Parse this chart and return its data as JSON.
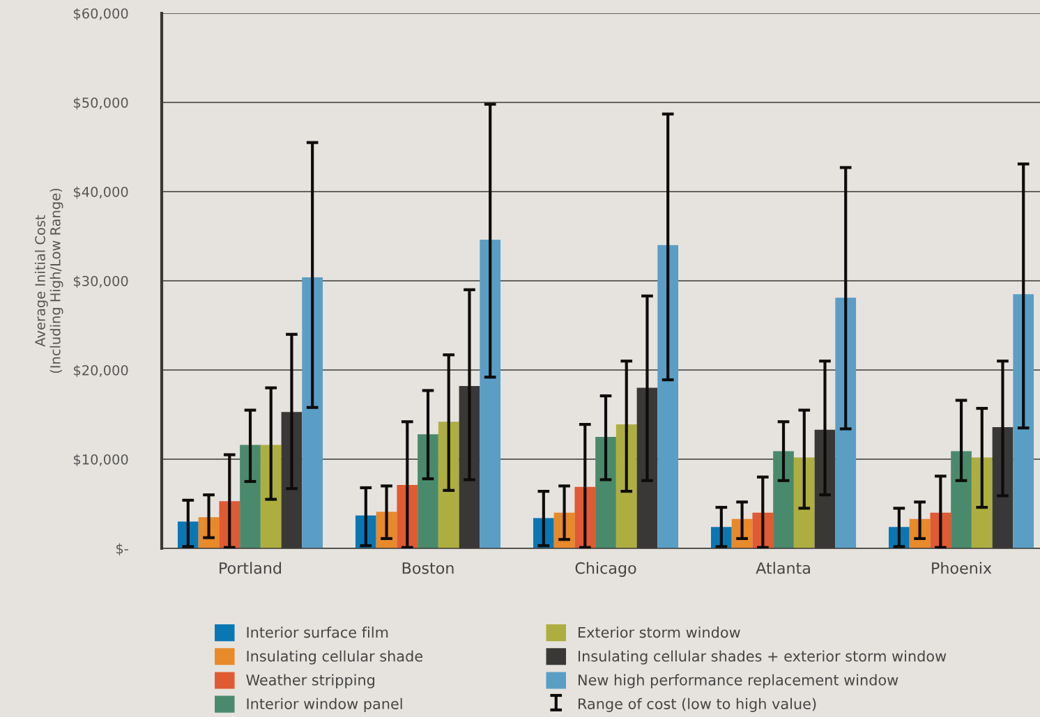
{
  "chart_data": {
    "type": "bar",
    "ylabel": "Average Initial Cost\n(Including High/Low Range)",
    "categories": [
      "Portland",
      "Boston",
      "Chicago",
      "Atlanta",
      "Phoenix"
    ],
    "ylim": [
      0,
      60000
    ],
    "yticks": [
      {
        "value": 0,
        "label": "$-"
      },
      {
        "value": 10000,
        "label": "$10,000"
      },
      {
        "value": 20000,
        "label": "$20,000"
      },
      {
        "value": 30000,
        "label": "$30,000"
      },
      {
        "value": 40000,
        "label": "$40,000"
      },
      {
        "value": 50000,
        "label": "$50,000"
      },
      {
        "value": 60000,
        "label": "$60,000"
      }
    ],
    "grid": "y",
    "legend": "bottom",
    "annotations": [
      "Range of cost (low to high value)"
    ],
    "series": [
      {
        "name": "Interior surface film",
        "color": "#0a77b5",
        "values": [
          3000,
          3700,
          3400,
          2400,
          2400
        ],
        "errors": [
          [
            200,
            5400
          ],
          [
            300,
            6800
          ],
          [
            300,
            6400
          ],
          [
            200,
            4600
          ],
          [
            200,
            4500
          ]
        ]
      },
      {
        "name": "Insulating cellular shade",
        "color": "#e8892a",
        "values": [
          3500,
          4100,
          4000,
          3300,
          3300
        ],
        "errors": [
          [
            1200,
            6000
          ],
          [
            1100,
            7000
          ],
          [
            1000,
            7000
          ],
          [
            1100,
            5200
          ],
          [
            1100,
            5200
          ]
        ]
      },
      {
        "name": "Weather stripping",
        "color": "#e05a33",
        "values": [
          5300,
          7100,
          6900,
          4000,
          4000
        ],
        "errors": [
          [
            100,
            10500
          ],
          [
            100,
            14200
          ],
          [
            100,
            13900
          ],
          [
            100,
            8000
          ],
          [
            100,
            8100
          ]
        ]
      },
      {
        "name": "Interior window panel",
        "color": "#4a8a6c",
        "values": [
          11600,
          12800,
          12500,
          10900,
          10900
        ],
        "errors": [
          [
            7500,
            15500
          ],
          [
            7800,
            17700
          ],
          [
            7700,
            17100
          ],
          [
            7600,
            14200
          ],
          [
            7600,
            16600
          ]
        ]
      },
      {
        "name": "Exterior storm window",
        "color": "#aeae40",
        "values": [
          11600,
          14200,
          13900,
          10200,
          10200
        ],
        "errors": [
          [
            5500,
            18000
          ],
          [
            6500,
            21700
          ],
          [
            6400,
            21000
          ],
          [
            4500,
            15500
          ],
          [
            4600,
            15700
          ]
        ]
      },
      {
        "name": "Insulating cellular shades + exterior storm window",
        "color": "#3a3836",
        "values": [
          15300,
          18200,
          18000,
          13300,
          13600
        ],
        "errors": [
          [
            6700,
            24000
          ],
          [
            7700,
            29000
          ],
          [
            7600,
            28300
          ],
          [
            6000,
            21000
          ],
          [
            5900,
            21000
          ]
        ]
      },
      {
        "name": "New high performance replacement window",
        "color": "#5a9ec6",
        "values": [
          30400,
          34600,
          34000,
          28100,
          28500
        ],
        "errors": [
          [
            15800,
            45500
          ],
          [
            19200,
            49800
          ],
          [
            18900,
            48700
          ],
          [
            13400,
            42700
          ],
          [
            13500,
            43100
          ]
        ]
      }
    ]
  }
}
